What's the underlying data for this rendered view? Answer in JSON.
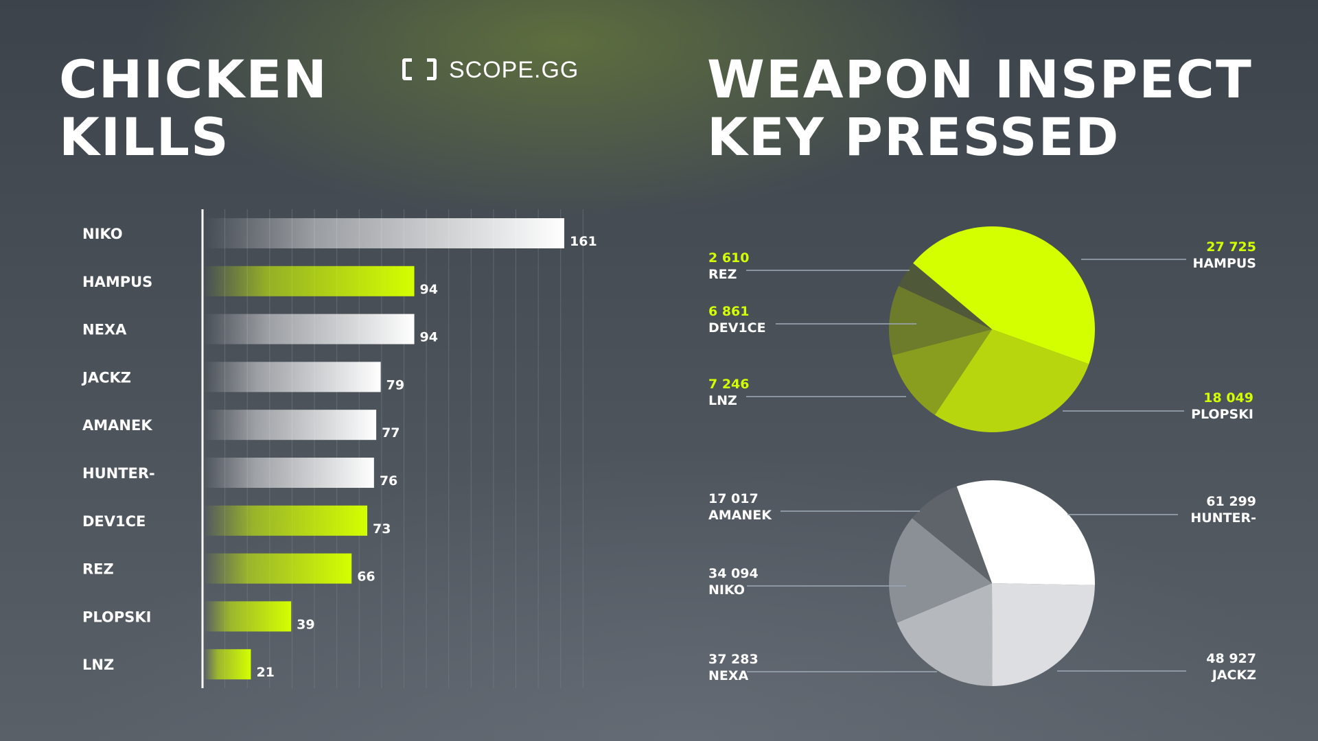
{
  "colors": {
    "accent_green": "#d4ff00",
    "bar_white": "#ffffff",
    "grid_line": "#7a7f86"
  },
  "logo": {
    "icon": "scope-bracket-icon",
    "text": "SCOPE.GG"
  },
  "left_title": {
    "line1": "CHICKEN",
    "line2": "KILLS"
  },
  "right_title": {
    "line1": "WEAPON INSPECT",
    "line2": "KEY PRESSED"
  },
  "chart_data": [
    {
      "type": "bar",
      "orientation": "horizontal",
      "title": "CHICKEN KILLS",
      "categories": [
        "NIKO",
        "HAMPUS",
        "NEXA",
        "JACKZ",
        "AMANEK",
        "HUNTER-",
        "DEV1CE",
        "REZ",
        "PLOPSKI",
        "LNZ"
      ],
      "values": [
        161,
        94,
        94,
        79,
        77,
        76,
        73,
        66,
        39,
        21
      ],
      "value_labels": [
        "161",
        "94",
        "94",
        "79",
        "77",
        "76",
        "73",
        "66",
        "39",
        "21"
      ],
      "highlight": [
        false,
        true,
        false,
        false,
        false,
        false,
        true,
        true,
        true,
        true
      ],
      "xlim": [
        0,
        170
      ],
      "grid": true,
      "gridline_step": 10
    },
    {
      "type": "pie",
      "title": "WEAPON INSPECT KEY PRESSED",
      "color_theme": "green",
      "slices": [
        {
          "label": "HAMPUS",
          "value": 27725,
          "value_label": "27 725",
          "color": "#d4ff00"
        },
        {
          "label": "PLOPSKI",
          "value": 18049,
          "value_label": "18 049",
          "color": "#b8d60e"
        },
        {
          "label": "LNZ",
          "value": 7246,
          "value_label": "7 246",
          "color": "#899e1e"
        },
        {
          "label": "DEV1CE",
          "value": 6861,
          "value_label": "6 861",
          "color": "#6d7c2a"
        },
        {
          "label": "REZ",
          "value": 2610,
          "value_label": "2 610",
          "color": "#50583a"
        }
      ]
    },
    {
      "type": "pie",
      "color_theme": "gray",
      "slices": [
        {
          "label": "HUNTER-",
          "value": 61299,
          "value_label": "61 299",
          "color": "#ffffff"
        },
        {
          "label": "JACKZ",
          "value": 48927,
          "value_label": "48 927",
          "color": "#dcdee1"
        },
        {
          "label": "NEXA",
          "value": 37283,
          "value_label": "37 283",
          "color": "#b5b8bd"
        },
        {
          "label": "NIKO",
          "value": 34094,
          "value_label": "34 094",
          "color": "#8b9096"
        },
        {
          "label": "AMANEK",
          "value": 17017,
          "value_label": "17 017",
          "color": "#5f646b"
        }
      ]
    }
  ]
}
